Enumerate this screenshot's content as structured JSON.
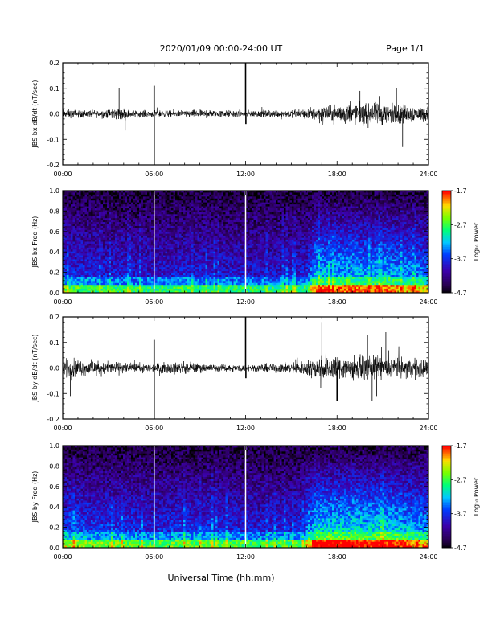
{
  "header": {
    "title": "2020/01/09  00:00-24:00 UT",
    "page": "Page 1/1"
  },
  "chart_data": [
    {
      "type": "line",
      "ylabel": "JBS bx dB/dt (nT/sec)",
      "xlim": [
        0,
        24
      ],
      "ylim": [
        -0.2,
        0.2
      ],
      "x_ticks": [
        "00:00",
        "06:00",
        "12:00",
        "18:00",
        "24:00"
      ],
      "y_ticks": [
        "0.2",
        "0.1",
        "0.0",
        "-0.1",
        "-0.2"
      ],
      "x_labels": [
        "00:00",
        "06:00",
        "12:00",
        "18:00",
        "24:00"
      ],
      "envelope": {
        "x": [
          0,
          1,
          2,
          3,
          3.8,
          4.5,
          5,
          6,
          7,
          8,
          9,
          10,
          11,
          12,
          13,
          14,
          15,
          16,
          16.5,
          17,
          17.5,
          18,
          18.5,
          19,
          19.5,
          20,
          20.5,
          21,
          21.5,
          22,
          22.5,
          23,
          24
        ],
        "amp": [
          0.025,
          0.022,
          0.02,
          0.025,
          0.04,
          0.02,
          0.02,
          0.018,
          0.02,
          0.02,
          0.022,
          0.02,
          0.02,
          0.018,
          0.02,
          0.02,
          0.022,
          0.03,
          0.04,
          0.05,
          0.045,
          0.05,
          0.05,
          0.055,
          0.06,
          0.05,
          0.065,
          0.06,
          0.06,
          0.055,
          0.05,
          0.045,
          0.04
        ]
      },
      "spikes": [
        {
          "x": 3.7,
          "y": 0.1
        },
        {
          "x": 4.1,
          "y": -0.065
        },
        {
          "x": 6.0,
          "y": 0.11
        },
        {
          "x": 6.02,
          "y": -0.2
        },
        {
          "x": 12.0,
          "y": 0.21
        },
        {
          "x": 12.02,
          "y": -0.04
        },
        {
          "x": 19.5,
          "y": 0.09
        },
        {
          "x": 20.8,
          "y": 0.07
        },
        {
          "x": 21.9,
          "y": 0.1
        },
        {
          "x": 22.3,
          "y": -0.13
        }
      ]
    },
    {
      "type": "heatmap",
      "ylabel": "JBS bx Freq (Hz)",
      "xlim": [
        0,
        24
      ],
      "ylim": [
        0,
        1.0
      ],
      "x_ticks": [
        "00:00",
        "06:00",
        "12:00",
        "18:00",
        "24:00"
      ],
      "y_ticks": [
        "1.0",
        "0.8",
        "0.6",
        "0.4",
        "0.2",
        "0.0"
      ],
      "x_labels": [
        "00:00",
        "06:00",
        "12:00",
        "18:00",
        "24:00"
      ],
      "colorbar": {
        "label": "Log₁₀ Power",
        "range": [
          -4.7,
          -1.7
        ],
        "ticks": [
          "-1.7",
          "-2.7",
          "-3.7",
          "-4.7"
        ]
      },
      "activity": {
        "x": [
          0,
          2,
          4,
          6,
          8,
          10,
          12,
          14,
          16,
          16.5,
          17,
          18,
          19,
          20,
          21,
          22,
          23,
          24
        ],
        "level": [
          0.35,
          0.3,
          0.28,
          0.25,
          0.3,
          0.28,
          0.25,
          0.25,
          0.3,
          0.7,
          0.75,
          0.7,
          0.75,
          0.65,
          0.75,
          0.65,
          0.6,
          0.55
        ]
      },
      "gaps": [
        6.0,
        12.0
      ]
    },
    {
      "type": "line",
      "ylabel": "JBS by dB/dt (nT/sec)",
      "xlim": [
        0,
        24
      ],
      "ylim": [
        -0.2,
        0.2
      ],
      "x_ticks": [
        "00:00",
        "06:00",
        "12:00",
        "18:00",
        "24:00"
      ],
      "y_ticks": [
        "0.2",
        "0.1",
        "0.0",
        "-0.1",
        "-0.2"
      ],
      "x_labels": [
        "00:00",
        "06:00",
        "12:00",
        "18:00",
        "24:00"
      ],
      "envelope": {
        "x": [
          0,
          0.5,
          1,
          2,
          3,
          4,
          5,
          6,
          7,
          8,
          9,
          10,
          11,
          12,
          13,
          14,
          15,
          16,
          16.5,
          17,
          17.5,
          18,
          18.5,
          19,
          19.5,
          20,
          20.5,
          21,
          22,
          23,
          24
        ],
        "amp": [
          0.04,
          0.06,
          0.045,
          0.04,
          0.035,
          0.03,
          0.025,
          0.025,
          0.03,
          0.03,
          0.025,
          0.02,
          0.02,
          0.02,
          0.022,
          0.025,
          0.03,
          0.04,
          0.06,
          0.07,
          0.065,
          0.07,
          0.065,
          0.07,
          0.06,
          0.065,
          0.07,
          0.06,
          0.06,
          0.055,
          0.05
        ]
      },
      "spikes": [
        {
          "x": 0.5,
          "y": -0.11
        },
        {
          "x": 6.0,
          "y": 0.11
        },
        {
          "x": 6.02,
          "y": -0.2
        },
        {
          "x": 12.0,
          "y": 0.21
        },
        {
          "x": 12.02,
          "y": -0.04
        },
        {
          "x": 17.0,
          "y": 0.18
        },
        {
          "x": 18.0,
          "y": -0.13
        },
        {
          "x": 19.7,
          "y": 0.19
        },
        {
          "x": 20.0,
          "y": 0.13
        },
        {
          "x": 20.3,
          "y": -0.13
        },
        {
          "x": 21.2,
          "y": 0.14
        },
        {
          "x": 20.6,
          "y": -0.11
        }
      ]
    },
    {
      "type": "heatmap",
      "ylabel": "JBS by Freq (Hz)",
      "xlim": [
        0,
        24
      ],
      "ylim": [
        0,
        1.0
      ],
      "x_ticks": [
        "00:00",
        "06:00",
        "12:00",
        "18:00",
        "24:00"
      ],
      "y_ticks": [
        "1.0",
        "0.8",
        "0.6",
        "0.4",
        "0.2",
        "0.0"
      ],
      "x_labels": [
        "00:00",
        "06:00",
        "12:00",
        "18:00",
        "24:00"
      ],
      "colorbar": {
        "label": "Log₁₀ Power",
        "range": [
          -4.7,
          -1.7
        ],
        "ticks": [
          "-1.7",
          "-2.7",
          "-3.7",
          "-4.7"
        ]
      },
      "activity": {
        "x": [
          0,
          2,
          4,
          6,
          8,
          10,
          12,
          14,
          16,
          16.5,
          17,
          18,
          19,
          20,
          21,
          22,
          23,
          24
        ],
        "level": [
          0.5,
          0.4,
          0.38,
          0.32,
          0.38,
          0.35,
          0.3,
          0.3,
          0.35,
          0.8,
          0.85,
          0.82,
          0.85,
          0.8,
          0.85,
          0.78,
          0.7,
          0.65
        ]
      },
      "gaps": [
        6.0,
        12.0
      ]
    }
  ],
  "footer": {
    "xlabel": "Universal Time (hh:mm)"
  }
}
